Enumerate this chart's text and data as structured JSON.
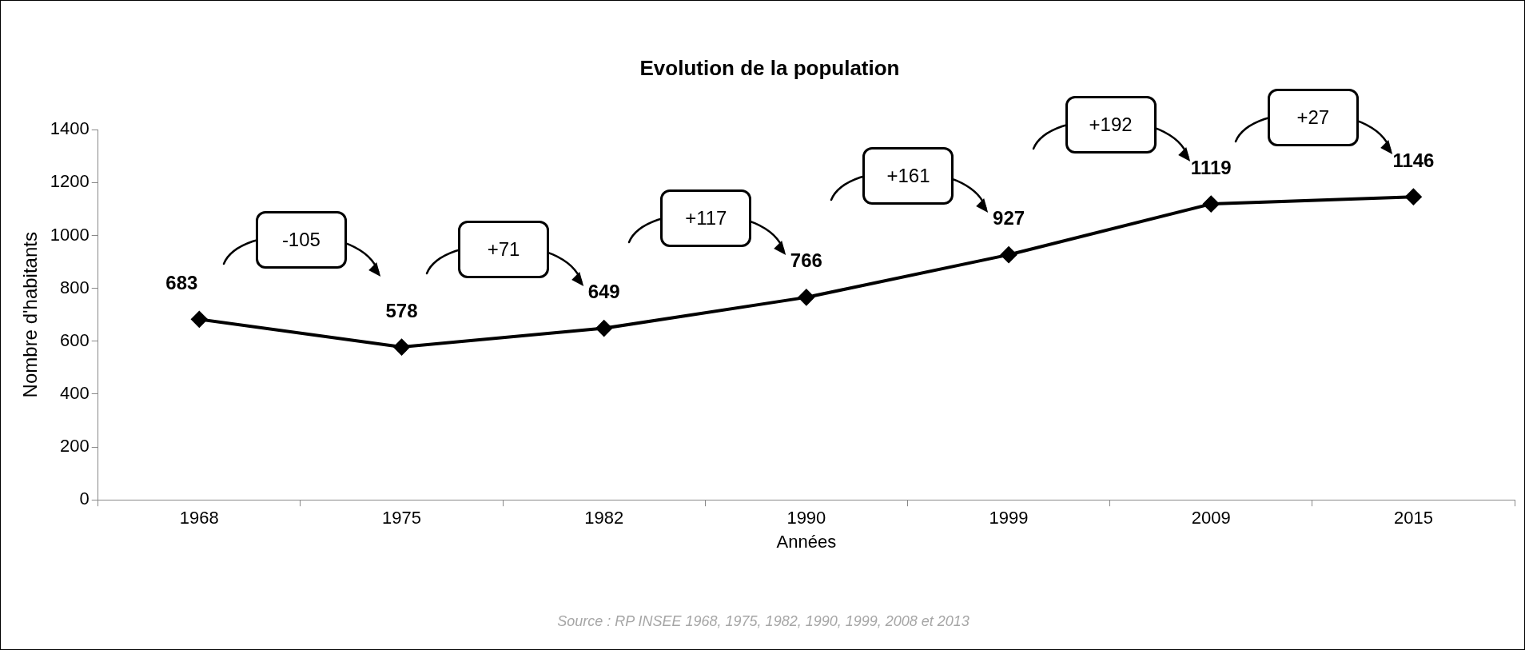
{
  "chart_data": {
    "type": "line",
    "title": "Evolution de la population",
    "xlabel": "Années",
    "ylabel": "Nombre d'habitants",
    "categories": [
      "1968",
      "1975",
      "1982",
      "1990",
      "1999",
      "2009",
      "2015"
    ],
    "series": [
      {
        "color": "#000000",
        "values": [
          683,
          578,
          649,
          766,
          927,
          1119,
          1146
        ]
      }
    ],
    "ylim": [
      0,
      1400
    ],
    "yticks": [
      0,
      200,
      400,
      600,
      800,
      1000,
      1200,
      1400
    ],
    "grid": false,
    "legend": false,
    "marker": "diamond",
    "line_style": "solid",
    "data_labels": true,
    "annotations": [
      "-105",
      "+71",
      "+117",
      "+161",
      "+192",
      "+27",
      "Source : RP INSEE 1968, 1975, 1982, 1990, 1999, 2008 et 2013"
    ]
  }
}
